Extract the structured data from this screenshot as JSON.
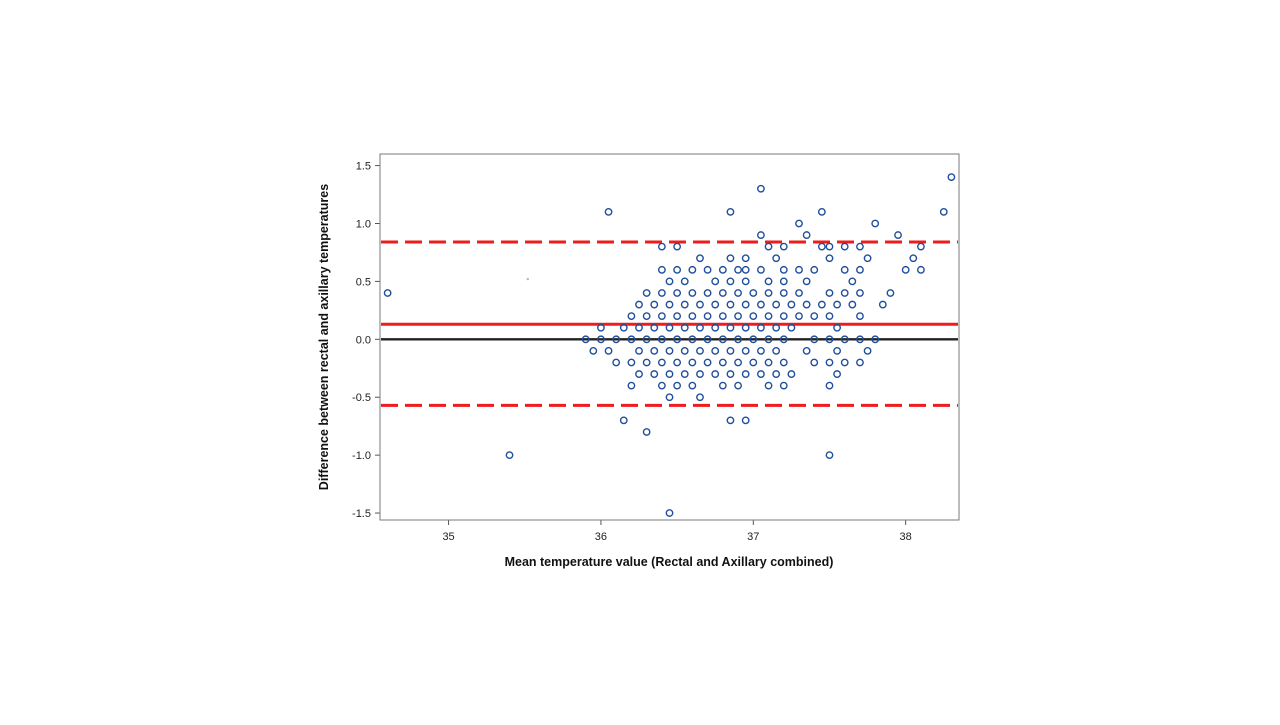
{
  "chart_data": {
    "type": "scatter",
    "title": "",
    "xlabel": "Mean temperature value (Rectal and Axillary combined)",
    "ylabel": "Difference between rectal and axillary temperatures",
    "xlim": [
      34.55,
      38.35
    ],
    "ylim": [
      -1.56,
      1.6
    ],
    "xticks": [
      35,
      36,
      37,
      38
    ],
    "yticks": [
      -1.5,
      -1.0,
      -0.5,
      0.0,
      0.5,
      1.0,
      1.5
    ],
    "xtick_labels": [
      "35",
      "36",
      "37",
      "38"
    ],
    "ytick_labels": [
      "-1.5",
      "-1.0",
      "-0.5",
      "0.0",
      "0.5",
      "1.0",
      "1.5"
    ],
    "grid": false,
    "legend": "none",
    "reference_lines": [
      {
        "name": "zero",
        "y": 0.0,
        "style": "solid",
        "color": "#222222"
      },
      {
        "name": "mean difference",
        "y": 0.13,
        "style": "solid",
        "color": "#ee1c1c"
      },
      {
        "name": "upper limit of agreement",
        "y": 0.84,
        "style": "dashed",
        "color": "#ee1c1c"
      },
      {
        "name": "lower limit of agreement",
        "y": -0.57,
        "style": "dashed",
        "color": "#ee1c1c"
      }
    ],
    "series": [
      {
        "marker_color": "#1f4e9c",
        "points": [
          [
            34.6,
            0.4
          ],
          [
            35.4,
            -1.0
          ],
          [
            36.05,
            1.1
          ],
          [
            36.45,
            -1.5
          ],
          [
            36.85,
            1.1
          ],
          [
            37.05,
            1.3
          ],
          [
            38.3,
            1.4
          ],
          [
            38.25,
            1.1
          ],
          [
            37.8,
            1.0
          ],
          [
            37.95,
            0.9
          ],
          [
            37.3,
            1.0
          ],
          [
            37.45,
            1.1
          ],
          [
            37.05,
            0.9
          ],
          [
            37.35,
            0.9
          ],
          [
            36.4,
            0.8
          ],
          [
            36.5,
            0.8
          ],
          [
            37.1,
            0.8
          ],
          [
            37.2,
            0.8
          ],
          [
            37.45,
            0.8
          ],
          [
            37.5,
            0.8
          ],
          [
            37.6,
            0.8
          ],
          [
            37.7,
            0.8
          ],
          [
            38.1,
            0.8
          ],
          [
            36.65,
            0.7
          ],
          [
            36.85,
            0.7
          ],
          [
            36.95,
            0.7
          ],
          [
            37.15,
            0.7
          ],
          [
            37.5,
            0.7
          ],
          [
            37.75,
            0.7
          ],
          [
            38.05,
            0.7
          ],
          [
            36.4,
            0.6
          ],
          [
            36.5,
            0.6
          ],
          [
            36.6,
            0.6
          ],
          [
            36.7,
            0.6
          ],
          [
            36.8,
            0.6
          ],
          [
            36.9,
            0.6
          ],
          [
            36.95,
            0.6
          ],
          [
            37.05,
            0.6
          ],
          [
            37.2,
            0.6
          ],
          [
            37.3,
            0.6
          ],
          [
            37.4,
            0.6
          ],
          [
            37.6,
            0.6
          ],
          [
            37.7,
            0.6
          ],
          [
            38.0,
            0.6
          ],
          [
            38.1,
            0.6
          ],
          [
            36.45,
            0.5
          ],
          [
            36.55,
            0.5
          ],
          [
            36.75,
            0.5
          ],
          [
            36.85,
            0.5
          ],
          [
            36.95,
            0.5
          ],
          [
            37.1,
            0.5
          ],
          [
            37.2,
            0.5
          ],
          [
            37.35,
            0.5
          ],
          [
            37.65,
            0.5
          ],
          [
            36.3,
            0.4
          ],
          [
            36.4,
            0.4
          ],
          [
            36.5,
            0.4
          ],
          [
            36.6,
            0.4
          ],
          [
            36.7,
            0.4
          ],
          [
            36.8,
            0.4
          ],
          [
            36.9,
            0.4
          ],
          [
            37.0,
            0.4
          ],
          [
            37.1,
            0.4
          ],
          [
            37.2,
            0.4
          ],
          [
            37.3,
            0.4
          ],
          [
            37.5,
            0.4
          ],
          [
            37.6,
            0.4
          ],
          [
            37.7,
            0.4
          ],
          [
            37.9,
            0.4
          ],
          [
            36.25,
            0.3
          ],
          [
            36.35,
            0.3
          ],
          [
            36.45,
            0.3
          ],
          [
            36.55,
            0.3
          ],
          [
            36.65,
            0.3
          ],
          [
            36.75,
            0.3
          ],
          [
            36.85,
            0.3
          ],
          [
            36.95,
            0.3
          ],
          [
            37.05,
            0.3
          ],
          [
            37.15,
            0.3
          ],
          [
            37.25,
            0.3
          ],
          [
            37.35,
            0.3
          ],
          [
            37.45,
            0.3
          ],
          [
            37.55,
            0.3
          ],
          [
            37.65,
            0.3
          ],
          [
            37.85,
            0.3
          ],
          [
            36.2,
            0.2
          ],
          [
            36.3,
            0.2
          ],
          [
            36.4,
            0.2
          ],
          [
            36.5,
            0.2
          ],
          [
            36.6,
            0.2
          ],
          [
            36.7,
            0.2
          ],
          [
            36.8,
            0.2
          ],
          [
            36.9,
            0.2
          ],
          [
            37.0,
            0.2
          ],
          [
            37.1,
            0.2
          ],
          [
            37.2,
            0.2
          ],
          [
            37.3,
            0.2
          ],
          [
            37.4,
            0.2
          ],
          [
            37.5,
            0.2
          ],
          [
            37.7,
            0.2
          ],
          [
            36.0,
            0.1
          ],
          [
            36.15,
            0.1
          ],
          [
            36.25,
            0.1
          ],
          [
            36.35,
            0.1
          ],
          [
            36.45,
            0.1
          ],
          [
            36.55,
            0.1
          ],
          [
            36.65,
            0.1
          ],
          [
            36.75,
            0.1
          ],
          [
            36.85,
            0.1
          ],
          [
            36.95,
            0.1
          ],
          [
            37.05,
            0.1
          ],
          [
            37.15,
            0.1
          ],
          [
            37.25,
            0.1
          ],
          [
            37.55,
            0.1
          ],
          [
            35.9,
            0.0
          ],
          [
            36.0,
            0.0
          ],
          [
            36.1,
            0.0
          ],
          [
            36.2,
            0.0
          ],
          [
            36.3,
            0.0
          ],
          [
            36.4,
            0.0
          ],
          [
            36.5,
            0.0
          ],
          [
            36.6,
            0.0
          ],
          [
            36.7,
            0.0
          ],
          [
            36.8,
            0.0
          ],
          [
            36.9,
            0.0
          ],
          [
            37.0,
            0.0
          ],
          [
            37.1,
            0.0
          ],
          [
            37.2,
            0.0
          ],
          [
            37.4,
            0.0
          ],
          [
            37.5,
            0.0
          ],
          [
            37.6,
            0.0
          ],
          [
            37.7,
            0.0
          ],
          [
            37.8,
            0.0
          ],
          [
            35.95,
            -0.1
          ],
          [
            36.05,
            -0.1
          ],
          [
            36.25,
            -0.1
          ],
          [
            36.35,
            -0.1
          ],
          [
            36.45,
            -0.1
          ],
          [
            36.55,
            -0.1
          ],
          [
            36.65,
            -0.1
          ],
          [
            36.75,
            -0.1
          ],
          [
            36.85,
            -0.1
          ],
          [
            36.95,
            -0.1
          ],
          [
            37.05,
            -0.1
          ],
          [
            37.15,
            -0.1
          ],
          [
            37.35,
            -0.1
          ],
          [
            37.55,
            -0.1
          ],
          [
            37.75,
            -0.1
          ],
          [
            36.1,
            -0.2
          ],
          [
            36.2,
            -0.2
          ],
          [
            36.3,
            -0.2
          ],
          [
            36.4,
            -0.2
          ],
          [
            36.5,
            -0.2
          ],
          [
            36.6,
            -0.2
          ],
          [
            36.7,
            -0.2
          ],
          [
            36.8,
            -0.2
          ],
          [
            36.9,
            -0.2
          ],
          [
            37.0,
            -0.2
          ],
          [
            37.1,
            -0.2
          ],
          [
            37.2,
            -0.2
          ],
          [
            37.4,
            -0.2
          ],
          [
            37.5,
            -0.2
          ],
          [
            37.6,
            -0.2
          ],
          [
            37.7,
            -0.2
          ],
          [
            36.25,
            -0.3
          ],
          [
            36.35,
            -0.3
          ],
          [
            36.45,
            -0.3
          ],
          [
            36.55,
            -0.3
          ],
          [
            36.65,
            -0.3
          ],
          [
            36.75,
            -0.3
          ],
          [
            36.85,
            -0.3
          ],
          [
            36.95,
            -0.3
          ],
          [
            37.05,
            -0.3
          ],
          [
            37.15,
            -0.3
          ],
          [
            37.25,
            -0.3
          ],
          [
            37.55,
            -0.3
          ],
          [
            36.2,
            -0.4
          ],
          [
            36.4,
            -0.4
          ],
          [
            36.5,
            -0.4
          ],
          [
            36.6,
            -0.4
          ],
          [
            36.8,
            -0.4
          ],
          [
            36.9,
            -0.4
          ],
          [
            37.1,
            -0.4
          ],
          [
            37.2,
            -0.4
          ],
          [
            37.5,
            -0.4
          ],
          [
            36.45,
            -0.5
          ],
          [
            36.65,
            -0.5
          ],
          [
            36.15,
            -0.7
          ],
          [
            36.3,
            -0.8
          ],
          [
            36.85,
            -0.7
          ],
          [
            36.95,
            -0.7
          ],
          [
            37.5,
            -1.0
          ]
        ]
      }
    ],
    "stray_mark": [
      35.52,
      0.52
    ]
  }
}
